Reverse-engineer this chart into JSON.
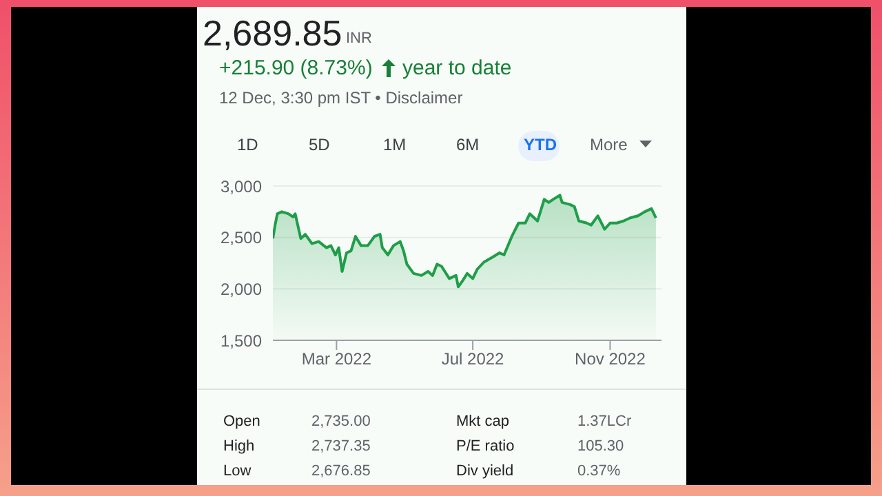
{
  "chart_data": {
    "type": "area",
    "title": "2,689.85",
    "subtitle": "INR",
    "annotations": [
      "+215.90 (8.73%)",
      "year to date",
      "12 Dec, 3:30 pm IST • Disclaimer",
      "1D",
      "5D",
      "1M",
      "6M",
      "YTD",
      "More",
      "Open",
      "2,735.00",
      "High",
      "2,737.35",
      "Low",
      "2,676.85",
      "Mkt cap",
      "1.37LCr",
      "P/E ratio",
      "105.30",
      "Div yield",
      "0.37%"
    ],
    "x": [
      "2022-01-03",
      "2022-01-05",
      "2022-01-07",
      "2022-01-11",
      "2022-01-17",
      "2022-01-21",
      "2022-01-23",
      "2022-01-28",
      "2022-02-01",
      "2022-02-07",
      "2022-02-13",
      "2022-02-20",
      "2022-02-24",
      "2022-02-28",
      "2022-03-03",
      "2022-03-06",
      "2022-03-10",
      "2022-03-14",
      "2022-03-18",
      "2022-03-23",
      "2022-03-29",
      "2022-04-04",
      "2022-04-09",
      "2022-04-11",
      "2022-04-16",
      "2022-04-21",
      "2022-04-27",
      "2022-04-30",
      "2022-05-03",
      "2022-05-09",
      "2022-05-16",
      "2022-05-22",
      "2022-05-26",
      "2022-05-30",
      "2022-06-03",
      "2022-06-10",
      "2022-06-16",
      "2022-06-18",
      "2022-06-22",
      "2022-06-26",
      "2022-07-01",
      "2022-07-05",
      "2022-07-11",
      "2022-07-19",
      "2022-07-25",
      "2022-07-29",
      "2022-08-05",
      "2022-08-11",
      "2022-08-17",
      "2022-08-21",
      "2022-08-28",
      "2022-09-03",
      "2022-09-07",
      "2022-09-11",
      "2022-09-17",
      "2022-09-19",
      "2022-09-26",
      "2022-09-30",
      "2022-10-04",
      "2022-10-11",
      "2022-10-15",
      "2022-10-21",
      "2022-10-27",
      "2022-11-01",
      "2022-11-07",
      "2022-11-13",
      "2022-11-19",
      "2022-11-26",
      "2022-12-02",
      "2022-12-08",
      "2022-12-12"
    ],
    "series": [
      {
        "color": "#1e9e48",
        "values": [
          2490,
          2620,
          2730,
          2750,
          2730,
          2700,
          2730,
          2490,
          2530,
          2440,
          2460,
          2400,
          2420,
          2330,
          2400,
          2170,
          2350,
          2370,
          2510,
          2420,
          2420,
          2510,
          2530,
          2400,
          2330,
          2420,
          2460,
          2370,
          2240,
          2150,
          2130,
          2170,
          2130,
          2240,
          2220,
          2100,
          2130,
          2020,
          2080,
          2150,
          2100,
          2190,
          2260,
          2310,
          2350,
          2330,
          2510,
          2640,
          2640,
          2730,
          2660,
          2870,
          2840,
          2870,
          2910,
          2840,
          2820,
          2800,
          2660,
          2640,
          2620,
          2710,
          2580,
          2640,
          2640,
          2660,
          2690,
          2710,
          2750,
          2780,
          2690
        ]
      }
    ],
    "xlim": [
      "2022-01-03",
      "2022-12-17"
    ],
    "xticks": [
      {
        "value": "2022-03-01",
        "label": "Mar 2022"
      },
      {
        "value": "2022-07-01",
        "label": "Jul 2022"
      },
      {
        "value": "2022-11-01",
        "label": "Nov 2022"
      }
    ],
    "ylim": [
      1500,
      3000
    ],
    "yticks": [
      {
        "value": 1500,
        "label": "1,500"
      },
      {
        "value": 2000,
        "label": "2,000"
      },
      {
        "value": 2500,
        "label": "2,500"
      },
      {
        "value": 3000,
        "label": "3,000"
      }
    ],
    "grid": "y",
    "legend": false
  }
}
